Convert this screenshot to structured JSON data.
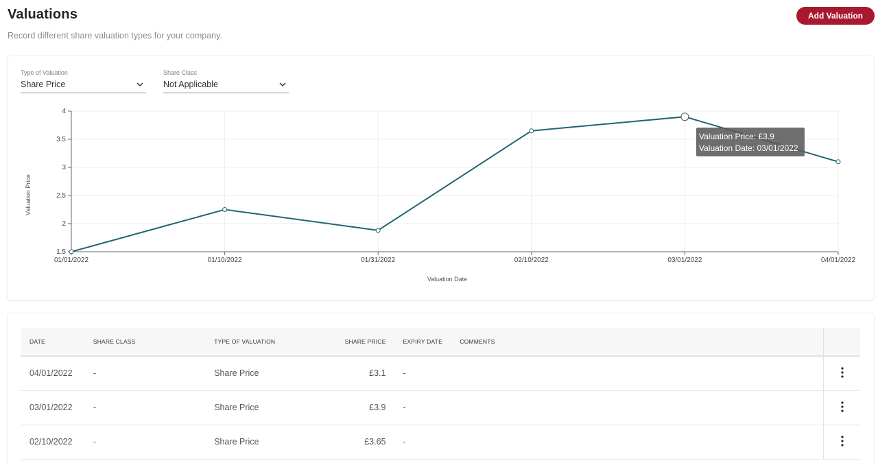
{
  "header": {
    "title": "Valuations",
    "subtitle": "Record different share valuation types for your company.",
    "add_button": "Add Valuation"
  },
  "colors": {
    "accent": "#a8182e",
    "line": "#1f6670"
  },
  "filters": {
    "type_label": "Type of Valuation",
    "type_value": "Share Price",
    "class_label": "Share Class",
    "class_value": "Not Applicable"
  },
  "chart_data": {
    "type": "line",
    "x": [
      "01/01/2022",
      "01/10/2022",
      "01/31/2022",
      "02/10/2022",
      "03/01/2022",
      "04/01/2022"
    ],
    "series": [
      {
        "values": [
          1.5,
          2.25,
          1.88,
          3.65,
          3.9,
          3.1
        ]
      }
    ],
    "xlabel": "Valuation Date",
    "ylabel": "Valuation Price",
    "ylim": [
      1.5,
      4
    ],
    "yticks": [
      "1.5",
      "2",
      "2.5",
      "3",
      "3.5",
      "4"
    ],
    "grid": true,
    "highlighted_index": 4,
    "tooltip": {
      "line1": "Valuation Price: £3.9",
      "line2": "Valuation Date: 03/01/2022"
    }
  },
  "table": {
    "headers": [
      "DATE",
      "SHARE CLASS",
      "TYPE OF VALUATION",
      "SHARE PRICE",
      "EXPIRY DATE",
      "COMMENTS"
    ],
    "rows": [
      {
        "date": "04/01/2022",
        "share_class": "-",
        "type": "Share Price",
        "price": "£3.1",
        "expiry": "-",
        "comments": ""
      },
      {
        "date": "03/01/2022",
        "share_class": "-",
        "type": "Share Price",
        "price": "£3.9",
        "expiry": "-",
        "comments": ""
      },
      {
        "date": "02/10/2022",
        "share_class": "-",
        "type": "Share Price",
        "price": "£3.65",
        "expiry": "-",
        "comments": ""
      }
    ]
  }
}
